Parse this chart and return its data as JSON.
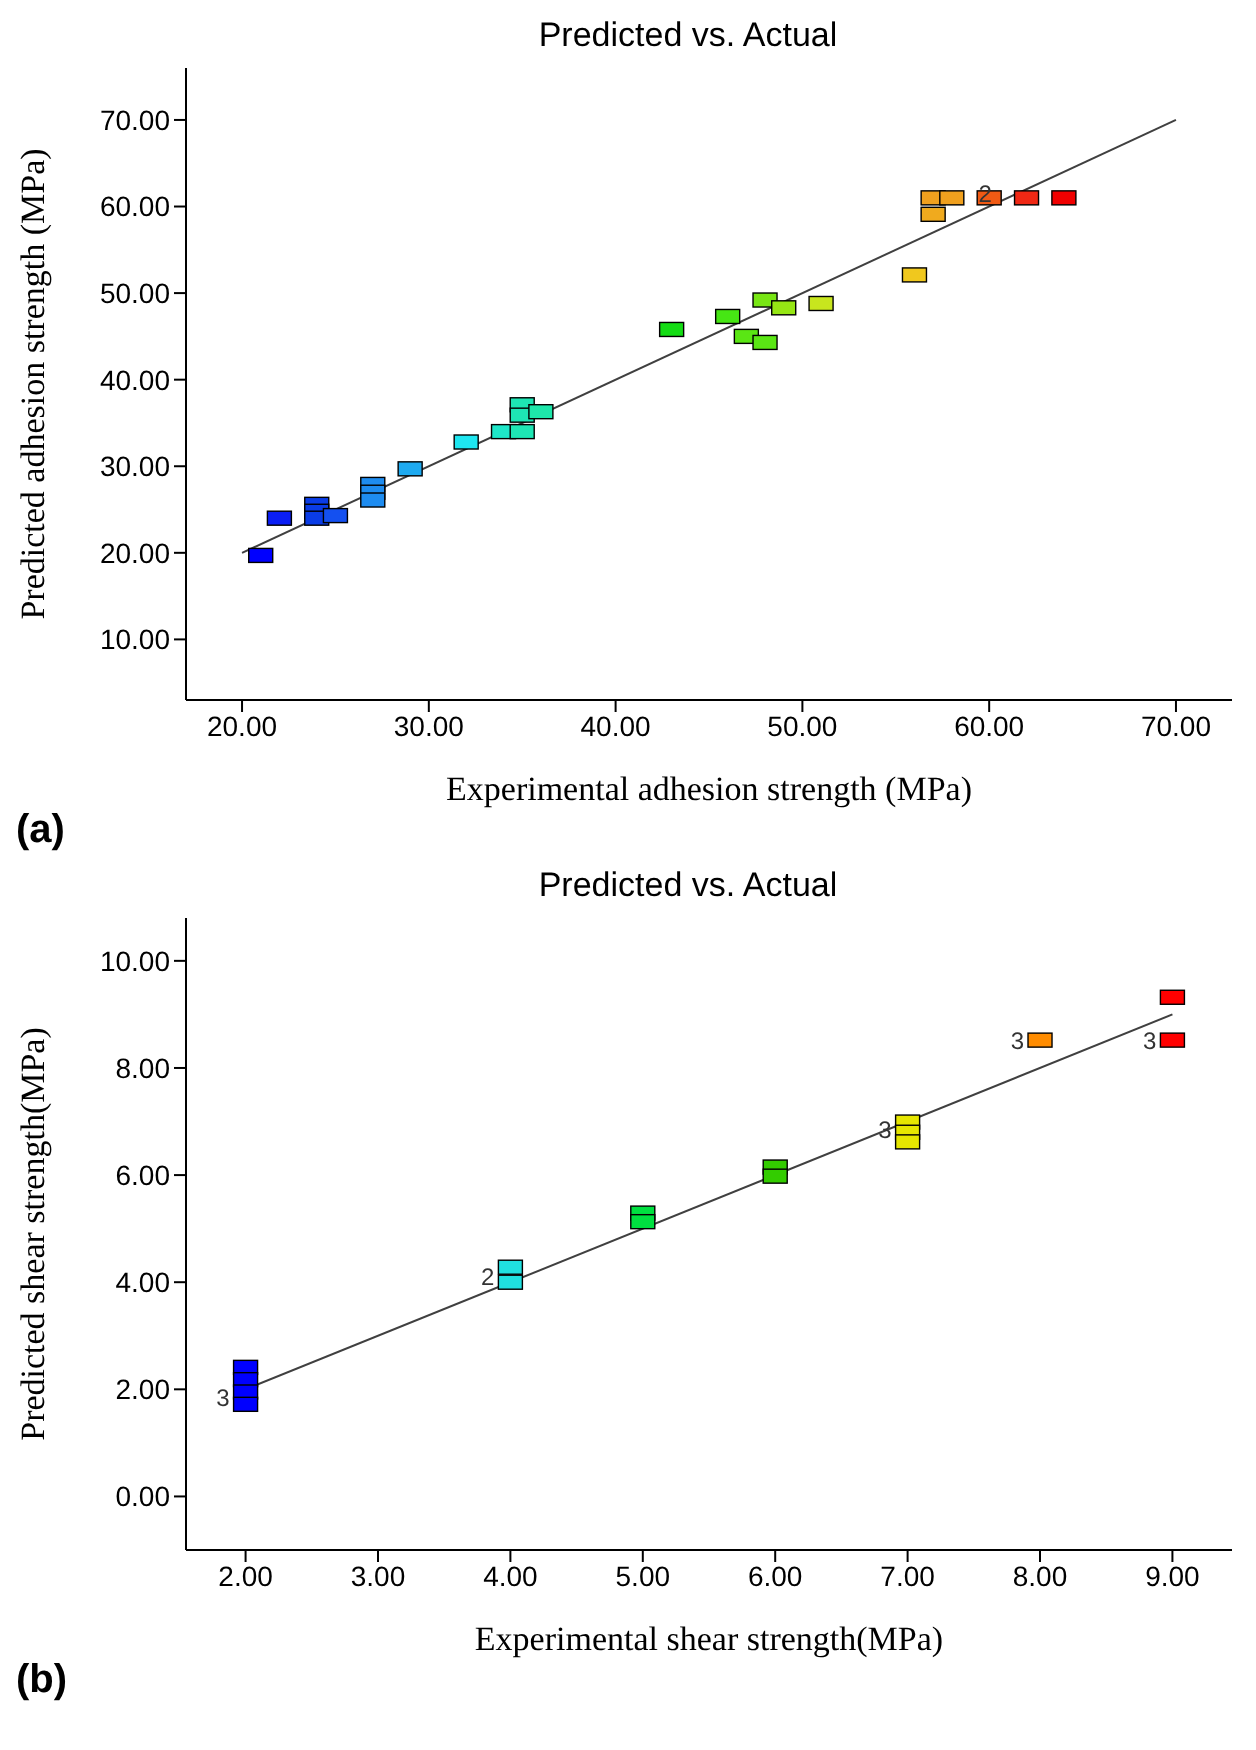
{
  "chart_data": [
    {
      "type": "scatter",
      "title": "Predicted vs. Actual",
      "xlabel": "Experimental adhesion strength (MPa)",
      "ylabel": "Predicted adhesion strength (MPa)",
      "xlim": [
        17,
        73
      ],
      "ylim": [
        3,
        76
      ],
      "xticks": [
        {
          "value": 20,
          "label": "20.00"
        },
        {
          "value": 30,
          "label": "30.00"
        },
        {
          "value": 40,
          "label": "40.00"
        },
        {
          "value": 50,
          "label": "50.00"
        },
        {
          "value": 60,
          "label": "60.00"
        },
        {
          "value": 70,
          "label": "70.00"
        }
      ],
      "yticks": [
        {
          "value": 10,
          "label": "10.00"
        },
        {
          "value": 20,
          "label": "20.00"
        },
        {
          "value": 30,
          "label": "30.00"
        },
        {
          "value": 40,
          "label": "40.00"
        },
        {
          "value": 50,
          "label": "50.00"
        },
        {
          "value": 60,
          "label": "60.00"
        },
        {
          "value": 70,
          "label": "70.00"
        }
      ],
      "grid": false,
      "legend": false,
      "series": [
        {
          "marker": "square",
          "x": [
            21,
            22,
            24,
            24,
            24,
            25,
            27,
            27,
            27,
            29,
            32,
            34,
            35,
            35,
            35,
            36,
            43,
            46,
            47,
            48,
            48,
            49,
            51,
            56,
            57,
            57,
            58,
            60,
            62,
            64
          ],
          "values": [
            19.7,
            24.0,
            25.6,
            24.8,
            24.0,
            24.3,
            27.9,
            27.0,
            26.1,
            29.7,
            32.8,
            34.0,
            34.0,
            37.1,
            35.9,
            36.3,
            45.8,
            47.3,
            45.0,
            44.3,
            49.2,
            48.3,
            48.8,
            52.1,
            59.1,
            61.0,
            61.0,
            61.0,
            61.0,
            61.0
          ],
          "colors": [
            "#0000ff",
            "#0a1ef5",
            "#0a3ce6",
            "#0a3ce6",
            "#0a3ce6",
            "#1450f0",
            "#1e8cf0",
            "#1e8cf0",
            "#1e8cf0",
            "#1eaaf0",
            "#1ee6f0",
            "#1ee6c8",
            "#1ee6b4",
            "#1ee6b4",
            "#1ee6b4",
            "#1ee6aa",
            "#14dc14",
            "#46e614",
            "#5ae614",
            "#5ae614",
            "#78e614",
            "#96e614",
            "#c8e61e",
            "#f0c81e",
            "#f0aa1e",
            "#f0a01e",
            "#f0a01e",
            "#f05a14",
            "#f02814",
            "#f00000"
          ]
        },
        {
          "type": "line",
          "marker": "none",
          "x": [
            20,
            70
          ],
          "values": [
            20,
            70
          ],
          "color": "#404040"
        }
      ],
      "annotations": [
        {
          "text": "2",
          "x": 61,
          "y": 61.5
        },
        "(a)"
      ]
    },
    {
      "type": "scatter",
      "title": "Predicted vs. Actual",
      "xlabel": "Experimental shear strength(MPa)",
      "ylabel": "Predicted shear strength(MPa)",
      "xlim": [
        1.55,
        9.45
      ],
      "ylim": [
        -1.0,
        10.8
      ],
      "xticks": [
        {
          "value": 2,
          "label": "2.00"
        },
        {
          "value": 3,
          "label": "3.00"
        },
        {
          "value": 4,
          "label": "4.00"
        },
        {
          "value": 5,
          "label": "5.00"
        },
        {
          "value": 6,
          "label": "6.00"
        },
        {
          "value": 7,
          "label": "7.00"
        },
        {
          "value": 8,
          "label": "8.00"
        },
        {
          "value": 9,
          "label": "9.00"
        }
      ],
      "yticks": [
        {
          "value": 0,
          "label": "0.00"
        },
        {
          "value": 2,
          "label": "2.00"
        },
        {
          "value": 4,
          "label": "4.00"
        },
        {
          "value": 6,
          "label": "6.00"
        },
        {
          "value": 8,
          "label": "8.00"
        },
        {
          "value": 10,
          "label": "10.00"
        }
      ],
      "grid": false,
      "legend": false,
      "series": [
        {
          "marker": "square",
          "x": [
            2,
            2,
            2,
            2,
            4,
            4,
            5,
            5,
            6,
            6,
            7,
            7,
            7,
            8,
            9,
            9
          ],
          "values": [
            2.41,
            2.18,
            1.95,
            1.72,
            4.28,
            4.0,
            5.29,
            5.13,
            6.15,
            5.98,
            6.99,
            6.8,
            6.62,
            8.52,
            9.32,
            8.52
          ],
          "colors": [
            "#0000ff",
            "#0000ff",
            "#0000ff",
            "#0000ff",
            "#20e0e0",
            "#20e0e0",
            "#00e040",
            "#00e040",
            "#33cc00",
            "#33cc00",
            "#e6e600",
            "#e6e600",
            "#e6e600",
            "#ff8c00",
            "#ff0000",
            "#ff0000"
          ]
        },
        {
          "type": "line",
          "marker": "none",
          "x": [
            2,
            9
          ],
          "values": [
            2,
            9
          ],
          "color": "#404040"
        }
      ],
      "annotations": [
        {
          "text": "3",
          "x": 2,
          "y": 1.85
        },
        {
          "text": "2",
          "x": 4,
          "y": 4.1
        },
        {
          "text": "3",
          "x": 7,
          "y": 6.85
        },
        {
          "text": "3",
          "x": 8,
          "y": 8.52
        },
        {
          "text": "3",
          "x": 9,
          "y": 8.52
        },
        "(b)"
      ]
    }
  ]
}
